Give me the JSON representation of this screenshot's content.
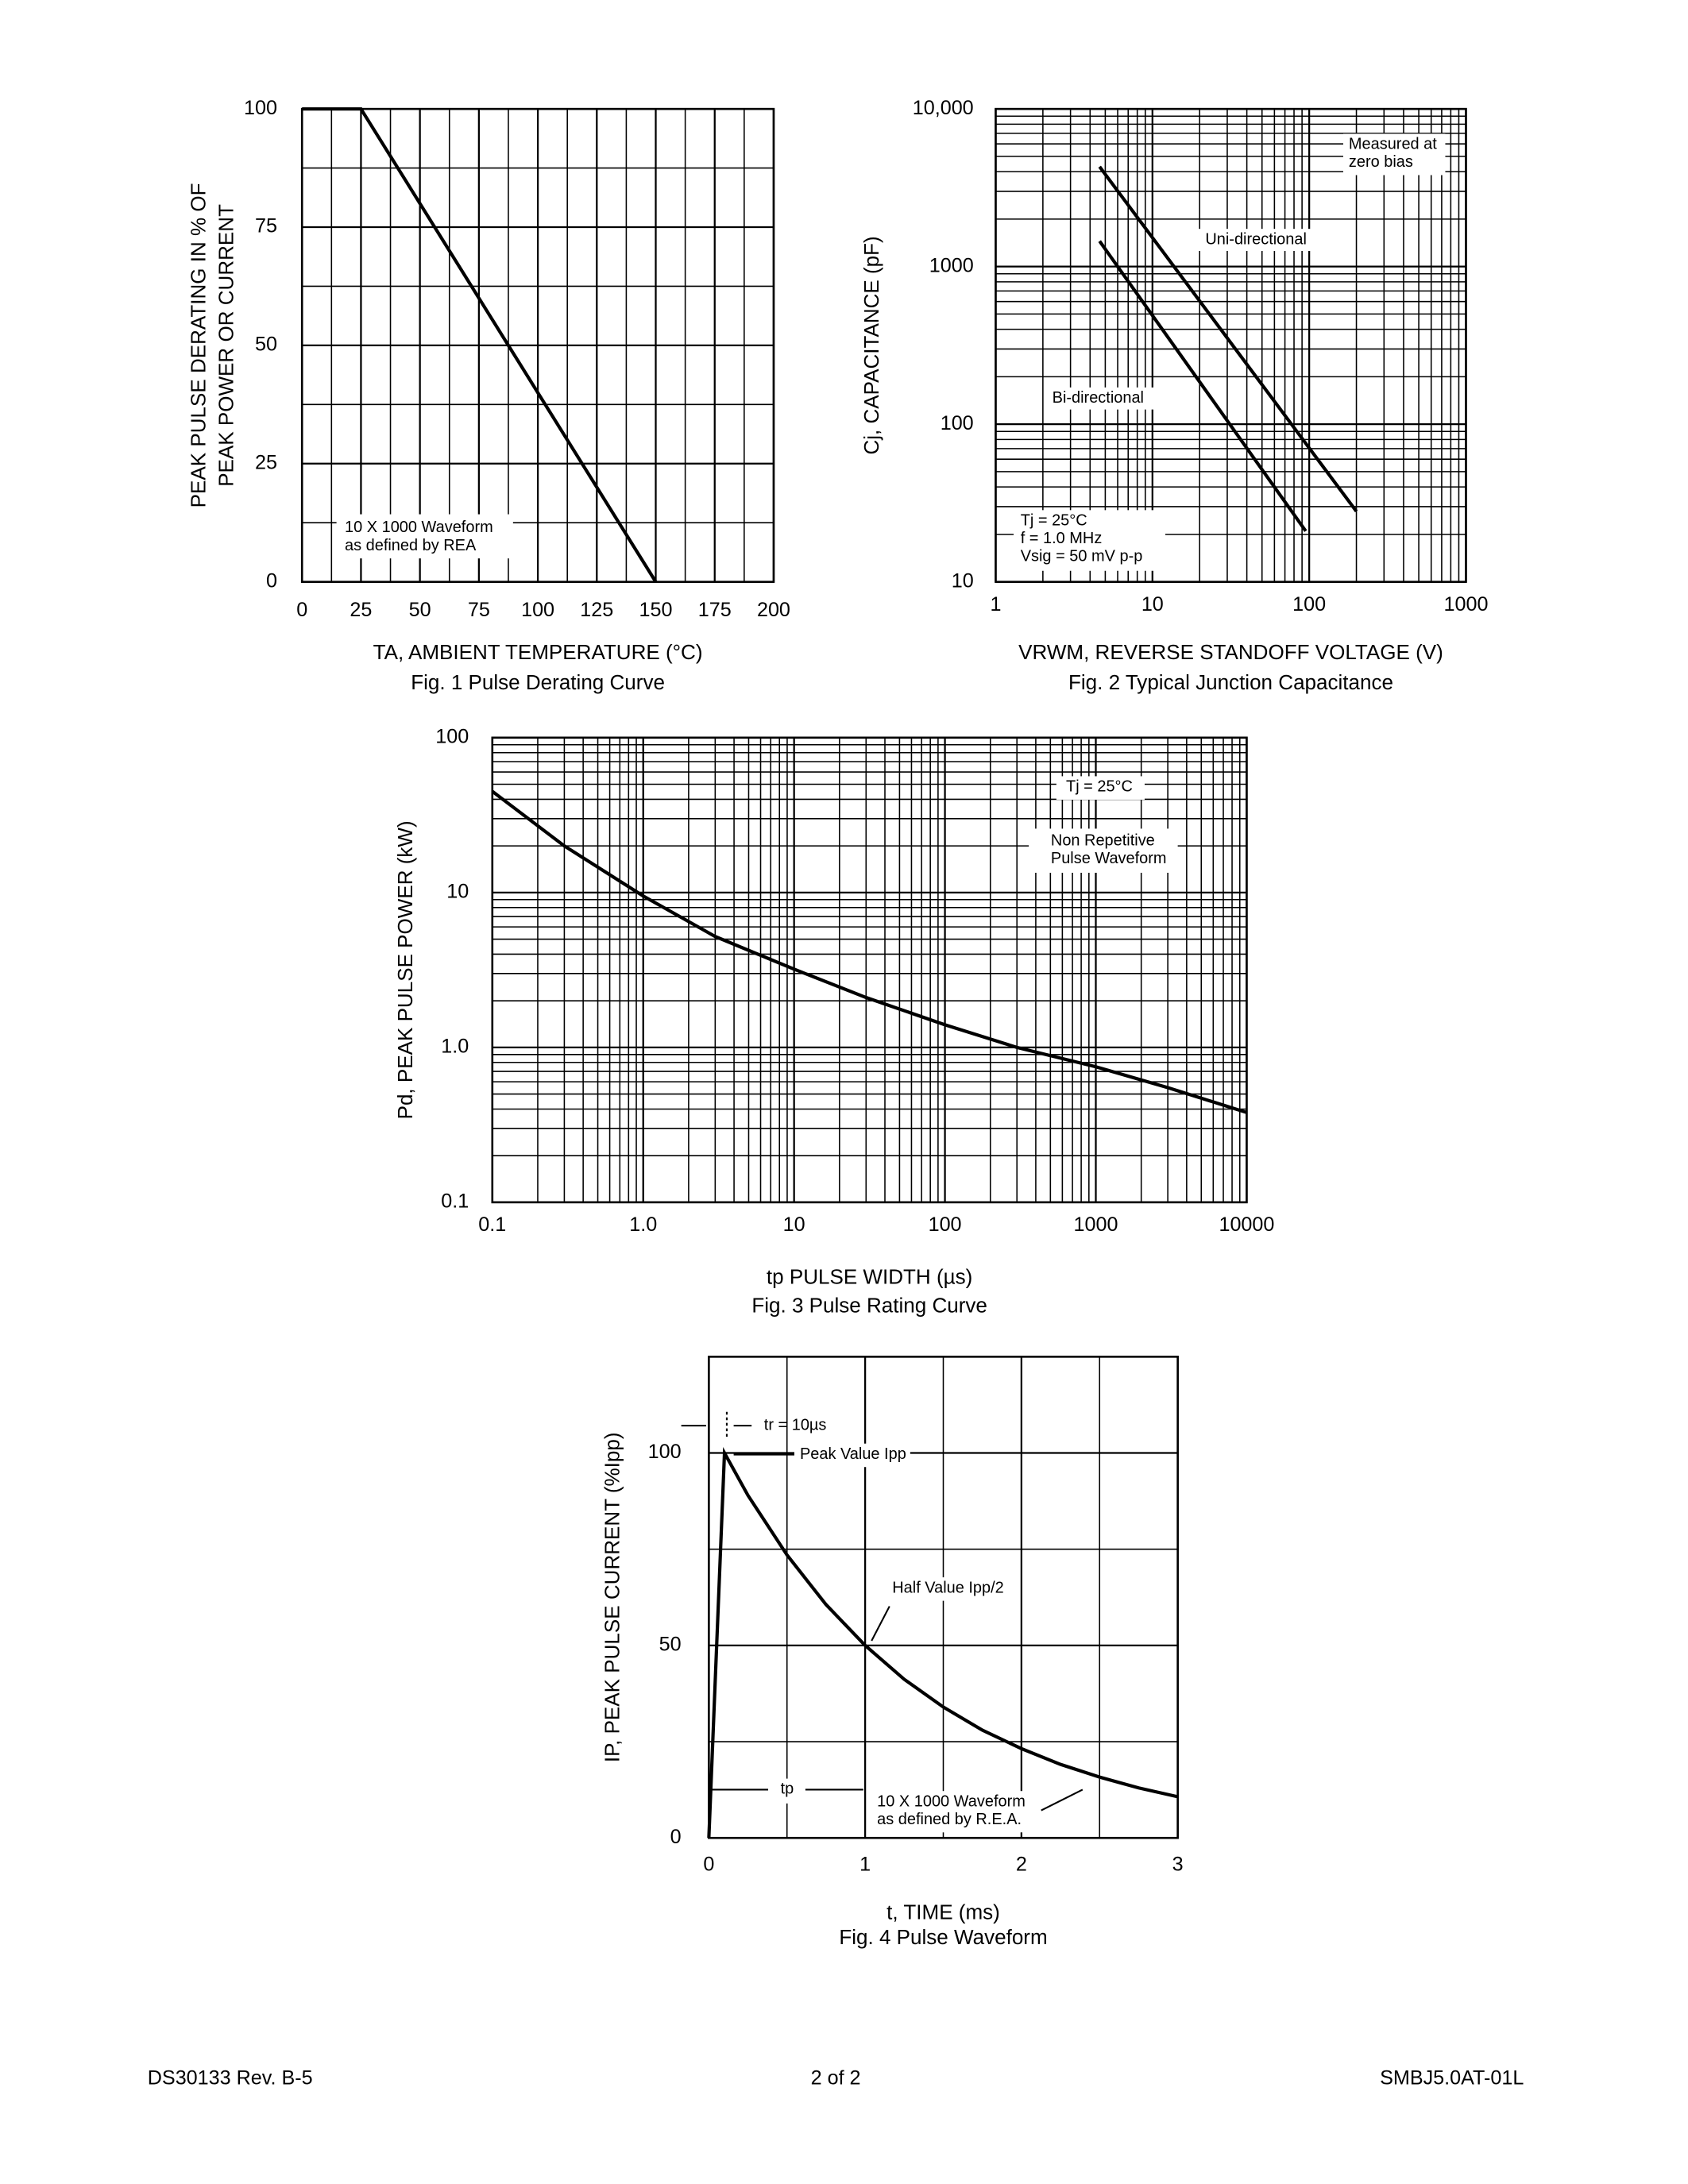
{
  "chart_data": [
    {
      "type": "line",
      "caption": "Fig. 1  Pulse Derating Curve",
      "y_label": [
        "PEAK PULSE DERATING IN % OF",
        "PEAK POWER OR CURRENT"
      ],
      "x_label": "TA, AMBIENT TEMPERATURE (°C)",
      "xlim": [
        0,
        200
      ],
      "xticks": [
        0,
        25,
        50,
        75,
        100,
        125,
        150,
        175,
        200
      ],
      "ylim": [
        0,
        100
      ],
      "yticks": [
        0,
        25,
        50,
        75,
        100
      ],
      "grid": true,
      "minor_grid": true,
      "series": [
        {
          "color": "#000000",
          "x": [
            0,
            25,
            150
          ],
          "values": [
            100,
            100,
            0
          ]
        }
      ],
      "annotations": [
        {
          "text": [
            "10 X 1000 Waveform",
            "as defined by REA"
          ]
        }
      ]
    },
    {
      "type": "line",
      "caption": "Fig. 2  Typical Junction Capacitance",
      "y_label": [
        "Cj, CAPACITANCE (pF)"
      ],
      "x_label": "VRWM, REVERSE STANDOFF VOLTAGE (V)",
      "x_log": true,
      "y_log": true,
      "xlim": [
        1,
        1000
      ],
      "xticks": [
        1,
        10,
        100,
        1000
      ],
      "ylim": [
        10,
        10000
      ],
      "yticks": [
        10,
        100,
        1000,
        {
          "value": 10000,
          "label": "10,000"
        }
      ],
      "grid": true,
      "minor_grid": true,
      "series": [
        {
          "name": "Uni-directional",
          "color": "#000000",
          "x": [
            4.6,
            200
          ],
          "values": [
            4300,
            28
          ]
        },
        {
          "name": "Bi-directional",
          "color": "#000000",
          "x": [
            4.6,
            95
          ],
          "values": [
            1450,
            21
          ]
        }
      ],
      "annotations": [
        {
          "text": [
            "Measured at",
            "zero bias"
          ]
        },
        {
          "text": [
            "Tj = 25°C",
            "f = 1.0 MHz",
            "Vsig = 50 mV p-p"
          ]
        }
      ]
    },
    {
      "type": "line",
      "caption": "Fig. 3 Pulse Rating Curve",
      "y_label": [
        "Pd, PEAK PULSE POWER (kW)"
      ],
      "x_label": "tp PULSE WIDTH (µs)",
      "x_log": true,
      "y_log": true,
      "xlim": [
        0.1,
        10000
      ],
      "xticks": [
        0.1,
        {
          "value": 1,
          "label": "1.0"
        },
        10,
        100,
        1000,
        10000
      ],
      "ylim": [
        0.1,
        100
      ],
      "yticks": [
        0.1,
        {
          "value": 1,
          "label": "1.0"
        },
        10,
        100
      ],
      "grid": true,
      "minor_grid": true,
      "series": [
        {
          "color": "#000000",
          "x": [
            0.1,
            0.3,
            1,
            3,
            10,
            30,
            100,
            300,
            1000,
            3000,
            10000
          ],
          "values": [
            45,
            20,
            9.5,
            5.2,
            3.2,
            2.1,
            1.4,
            1.0,
            0.75,
            0.55,
            0.38
          ]
        }
      ],
      "annotations": [
        {
          "text": [
            "Tj = 25°C"
          ]
        },
        {
          "text": [
            "Non Repetitive",
            "Pulse Waveform"
          ]
        }
      ]
    },
    {
      "type": "line",
      "caption": "Fig. 4  Pulse Waveform",
      "y_label": [
        "IP, PEAK PULSE CURRENT (%Ipp)"
      ],
      "x_label": "t, TIME (ms)",
      "xlim": [
        0,
        3
      ],
      "xticks": [
        0,
        1,
        2,
        3
      ],
      "ylim": [
        0,
        125
      ],
      "yticks": [
        0,
        50,
        100
      ],
      "grid": true,
      "minor_grid": true,
      "series": [
        {
          "color": "#000000",
          "x": [
            0,
            0.1,
            0.25,
            0.5,
            0.75,
            1,
            1.25,
            1.5,
            1.75,
            2,
            2.25,
            2.5,
            2.75,
            3
          ],
          "values": [
            0,
            100,
            89,
            73.5,
            60.6,
            50,
            41.2,
            34,
            28,
            23.2,
            19.1,
            15.8,
            13,
            10.7
          ]
        }
      ],
      "annotations": [
        {
          "text": [
            "tr = 10µs"
          ]
        },
        {
          "text": [
            "Peak Value Ipp"
          ]
        },
        {
          "text": [
            "Half Value Ipp/2"
          ]
        },
        {
          "text": [
            "tp"
          ]
        },
        {
          "text": [
            "10 X 1000 Waveform",
            "as defined by R.E.A."
          ]
        }
      ]
    }
  ],
  "footer": {
    "left": "DS30133 Rev. B-5",
    "center": "2 of 2",
    "right": "SMBJ5.0AT-01L"
  }
}
